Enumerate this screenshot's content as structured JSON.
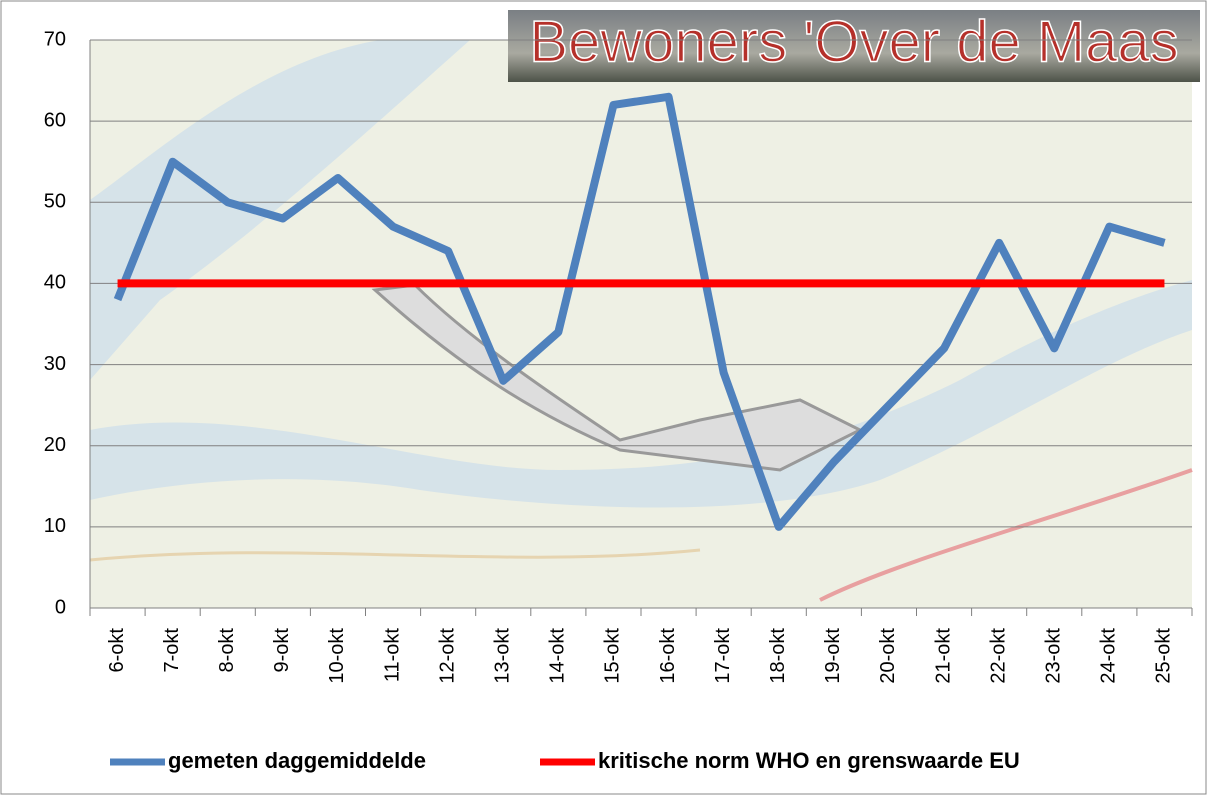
{
  "chart_data": {
    "type": "line",
    "banner": "Bewoners 'Over de Maas",
    "categories": [
      "6-okt",
      "7-okt",
      "8-okt",
      "9-okt",
      "10-okt",
      "11-okt",
      "12-okt",
      "13-okt",
      "14-okt",
      "15-okt",
      "16-okt",
      "17-okt",
      "18-okt",
      "19-okt",
      "20-okt",
      "21-okt",
      "22-okt",
      "23-okt",
      "24-okt",
      "25-okt"
    ],
    "series": [
      {
        "name": "gemeten daggemiddelde",
        "color": "#4f81bd",
        "values": [
          38,
          55,
          50,
          48,
          53,
          47,
          44,
          28,
          34,
          62,
          63,
          29,
          10,
          18,
          25,
          32,
          45,
          32,
          47,
          45
        ]
      },
      {
        "name": "kritische norm WHO en grenswaarde EU",
        "color": "#ff0000",
        "values": [
          40,
          40,
          40,
          40,
          40,
          40,
          40,
          40,
          40,
          40,
          40,
          40,
          40,
          40,
          40,
          40,
          40,
          40,
          40,
          40
        ]
      }
    ],
    "ylim": [
      0,
      70
    ],
    "yticks": [
      0,
      10,
      20,
      30,
      40,
      50,
      60,
      70
    ],
    "grid": true,
    "legend": "bottom"
  }
}
